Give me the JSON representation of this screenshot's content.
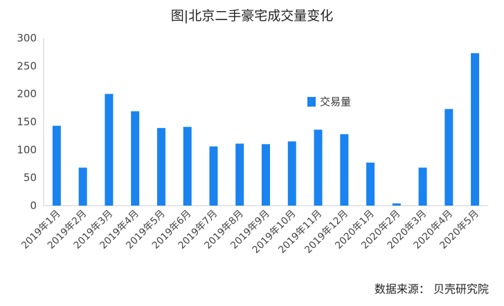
{
  "chart_data": {
    "type": "bar",
    "title": "图|北京二手豪宅成交量变化",
    "categories": [
      "2019年1月",
      "2019年2月",
      "2019年3月",
      "2019年4月",
      "2019年5月",
      "2019年6月",
      "2019年7月",
      "2019年8月",
      "2019年9月",
      "2019年10月",
      "2019年11月",
      "2019年12月",
      "2020年1月",
      "2020年2月",
      "2020年3月",
      "2020年4月",
      "2020年5月"
    ],
    "series": [
      {
        "name": "交易量",
        "values": [
          143,
          68,
          200,
          169,
          139,
          141,
          106,
          111,
          110,
          115,
          136,
          128,
          77,
          4,
          68,
          173,
          273
        ]
      }
    ],
    "ylim": [
      0,
      300
    ],
    "yticks": [
      0,
      50,
      100,
      150,
      200,
      250,
      300
    ],
    "grid": false,
    "legend_position": "right",
    "bar_color": "#1a83f0"
  },
  "source_text": "数据来源： 贝壳研究院"
}
